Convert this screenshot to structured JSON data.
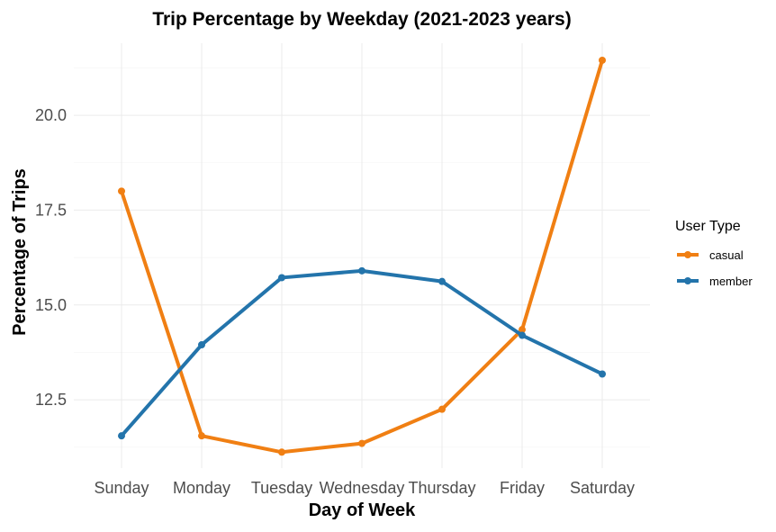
{
  "chart_data": {
    "type": "line",
    "title": "Trip Percentage by Weekday (2021-2023 years)",
    "xlabel": "Day of Week",
    "ylabel": "Percentage of Trips",
    "categories": [
      "Sunday",
      "Monday",
      "Tuesday",
      "Wednesday",
      "Thursday",
      "Friday",
      "Saturday"
    ],
    "ylim": [
      10.7,
      21.9
    ],
    "yticks": [
      12.5,
      15.0,
      17.5,
      20.0
    ],
    "ytick_labels": [
      "12.5",
      "15.0",
      "17.5",
      "20.0"
    ],
    "grid": true,
    "legend": {
      "title": "User Type",
      "position": "right"
    },
    "series": [
      {
        "name": "casual",
        "color": "#f07f13",
        "values": [
          18.0,
          11.55,
          11.12,
          11.35,
          12.25,
          14.35,
          21.45
        ]
      },
      {
        "name": "member",
        "color": "#2374ab",
        "values": [
          11.55,
          13.95,
          15.72,
          15.9,
          15.62,
          14.2,
          13.18
        ]
      }
    ]
  }
}
